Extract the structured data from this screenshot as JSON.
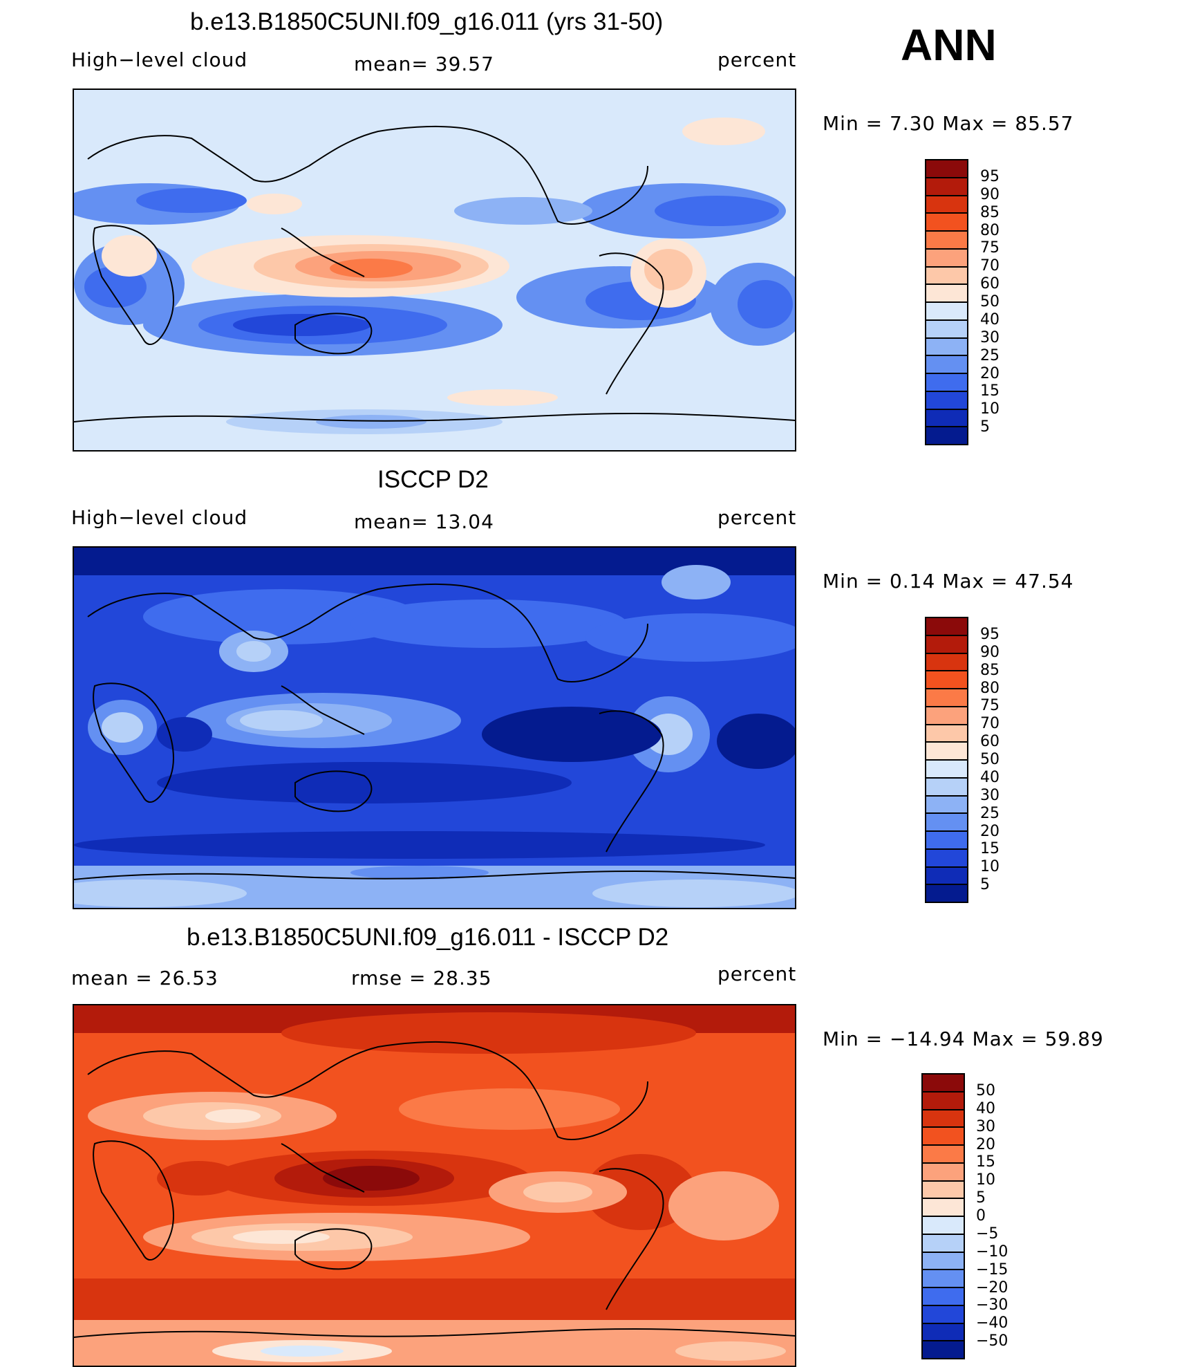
{
  "season": "ANN",
  "panels": [
    {
      "title": "b.e13.B1850C5UNI.f09_g16.011 (yrs 31-50)",
      "left_label": "High−level cloud",
      "center_label": "mean=   39.57",
      "right_label": "percent",
      "minmax": "Min =    7.30 Max =   85.57",
      "colorbar_labels": [
        "95",
        "90",
        "85",
        "80",
        "75",
        "70",
        "60",
        "50",
        "40",
        "30",
        "25",
        "20",
        "15",
        "10",
        "5"
      ],
      "colorbar_colors": [
        "#8b0a0a",
        "#b31b0b",
        "#d8340f",
        "#f2521f",
        "#fb7a47",
        "#fca27c",
        "#fdc8a9",
        "#fde6d6",
        "#d9e9fb",
        "#b6d1f8",
        "#8db2f5",
        "#6490f2",
        "#3f6cee",
        "#2247d9",
        "#0f2cb7",
        "#041b8f"
      ]
    },
    {
      "title": "ISCCP D2",
      "left_label": "High−level cloud",
      "center_label": "mean=   13.04",
      "right_label": "percent",
      "minmax": "Min =    0.14 Max =   47.54",
      "colorbar_labels": [
        "95",
        "90",
        "85",
        "80",
        "75",
        "70",
        "60",
        "50",
        "40",
        "30",
        "25",
        "20",
        "15",
        "10",
        "5"
      ],
      "colorbar_colors": [
        "#8b0a0a",
        "#b31b0b",
        "#d8340f",
        "#f2521f",
        "#fb7a47",
        "#fca27c",
        "#fdc8a9",
        "#fde6d6",
        "#d9e9fb",
        "#b6d1f8",
        "#8db2f5",
        "#6490f2",
        "#3f6cee",
        "#2247d9",
        "#0f2cb7",
        "#041b8f"
      ]
    },
    {
      "title": "b.e13.B1850C5UNI.f09_g16.011 - ISCCP D2",
      "left_label": "mean =   26.53",
      "center_label": "rmse =   28.35",
      "right_label": "percent",
      "minmax": "Min = −14.94 Max =   59.89",
      "colorbar_labels": [
        "50",
        "40",
        "30",
        "20",
        "15",
        "10",
        "5",
        "0",
        "−5",
        "−10",
        "−15",
        "−20",
        "−30",
        "−40",
        "−50"
      ],
      "colorbar_colors": [
        "#8b0a0a",
        "#b31b0b",
        "#d8340f",
        "#f2521f",
        "#fb7a47",
        "#fca27c",
        "#fdc8a9",
        "#fde6d6",
        "#d9e9fb",
        "#b6d1f8",
        "#8db2f5",
        "#6490f2",
        "#3f6cee",
        "#2247d9",
        "#0f2cb7",
        "#041b8f"
      ]
    }
  ]
}
